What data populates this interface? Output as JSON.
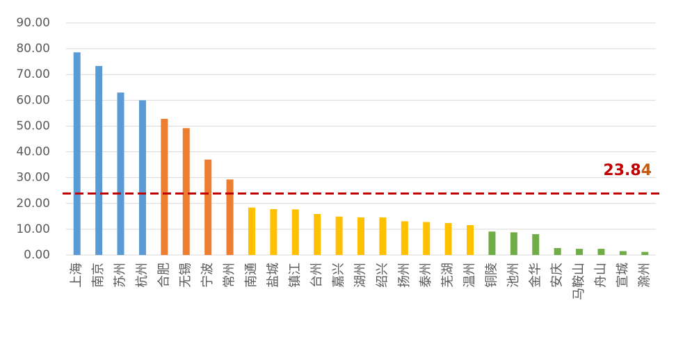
{
  "chart_data": {
    "type": "bar",
    "categories": [
      "上海",
      "南京",
      "苏州",
      "杭州",
      "合肥",
      "无锡",
      "宁波",
      "常州",
      "南通",
      "盐城",
      "镇江",
      "台州",
      "嘉兴",
      "湖州",
      "绍兴",
      "扬州",
      "泰州",
      "芜湖",
      "温州",
      "铜陵",
      "池州",
      "金华",
      "安庆",
      "马鞍山",
      "舟山",
      "宣城",
      "滁州"
    ],
    "values": [
      78.6,
      73.3,
      63.0,
      60.0,
      52.8,
      49.2,
      37.0,
      29.3,
      18.4,
      17.8,
      17.7,
      15.9,
      14.9,
      14.6,
      14.6,
      13.1,
      12.8,
      12.4,
      11.6,
      9.1,
      8.8,
      8.1,
      2.7,
      2.4,
      2.4,
      1.5,
      1.2
    ],
    "colors": [
      "#5b9bd5",
      "#5b9bd5",
      "#5b9bd5",
      "#5b9bd5",
      "#ed7d31",
      "#ed7d31",
      "#ed7d31",
      "#ed7d31",
      "#ffc000",
      "#ffc000",
      "#ffc000",
      "#ffc000",
      "#ffc000",
      "#ffc000",
      "#ffc000",
      "#ffc000",
      "#ffc000",
      "#ffc000",
      "#ffc000",
      "#70ad47",
      "#70ad47",
      "#70ad47",
      "#70ad47",
      "#70ad47",
      "#70ad47",
      "#70ad47",
      "#70ad47"
    ],
    "ylim": [
      0,
      90
    ],
    "yticks": [
      {
        "value": 0,
        "label": "0.00"
      },
      {
        "value": 10,
        "label": "10.00"
      },
      {
        "value": 20,
        "label": "20.00"
      },
      {
        "value": 30,
        "label": "30.00"
      },
      {
        "value": 40,
        "label": "40.00"
      },
      {
        "value": 50,
        "label": "50.00"
      },
      {
        "value": 60,
        "label": "60.00"
      },
      {
        "value": 70,
        "label": "70.00"
      },
      {
        "value": 80,
        "label": "80.00"
      },
      {
        "value": 90,
        "label": "90.00"
      }
    ],
    "grid": true,
    "reference_line": {
      "value": 23.84,
      "color": "#c00000"
    }
  }
}
